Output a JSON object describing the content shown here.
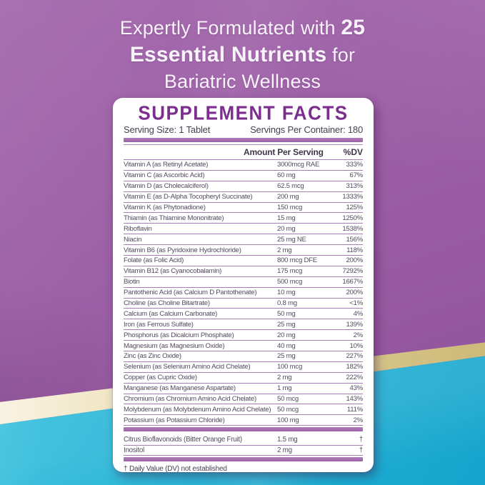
{
  "headline": {
    "line1_regular": "Expertly Formulated with ",
    "line1_bold": "25",
    "line2_bold": "Essential Nutrients",
    "line2_regular": " for",
    "line3": "Bariatric Wellness"
  },
  "panel": {
    "title": "SUPPLEMENT FACTS",
    "serving_size": "Serving Size: 1 Tablet",
    "servings_per_container": "Servings Per Container: 180",
    "col_amount": "Amount Per Serving",
    "col_dv": "%DV",
    "rows": [
      {
        "name": "Vitamin A (as Retinyl Acetate)",
        "amount": "3000mcg RAE",
        "dv": "333%"
      },
      {
        "name": "Vitamin C (as Ascorbic Acid)",
        "amount": "60 mg",
        "dv": "67%"
      },
      {
        "name": "Vitamin D (as Cholecalciferol)",
        "amount": "62.5 mcg",
        "dv": "313%"
      },
      {
        "name": "Vitamin E (as D-Alpha Tocopheryl Succinate)",
        "amount": "200 mg",
        "dv": "1333%"
      },
      {
        "name": "Vitamin K (as Phytonadione)",
        "amount": "150 mcg",
        "dv": "125%"
      },
      {
        "name": "Thiamin (as Thiamine Mononitrate)",
        "amount": "15 mg",
        "dv": "1250%"
      },
      {
        "name": "Riboflavin",
        "amount": "20 mg",
        "dv": "1538%"
      },
      {
        "name": "Niacin",
        "amount": "25 mg NE",
        "dv": "156%"
      },
      {
        "name": "Vitamin B6 (as Pyridoxine Hydrochloride)",
        "amount": "2 mg",
        "dv": "118%"
      },
      {
        "name": "Folate (as Folic Acid)",
        "amount": "800 mcg DFE",
        "dv": "200%"
      },
      {
        "name": "Vitamin B12 (as Cyanocobalamin)",
        "amount": "175 mcg",
        "dv": "7292%"
      },
      {
        "name": "Biotin",
        "amount": "500 mcg",
        "dv": "1667%"
      },
      {
        "name": "Pantothenic Acid (as Calcium D Pantothenate)",
        "amount": "10 mg",
        "dv": "200%"
      },
      {
        "name": "Choline (as Choline Bitartrate)",
        "amount": "0.8 mg",
        "dv": "<1%"
      },
      {
        "name": "Calcium (as Calcium Carbonate)",
        "amount": "50 mg",
        "dv": "4%"
      },
      {
        "name": "Iron (as Ferrous Sulfate)",
        "amount": "25 mg",
        "dv": "139%"
      },
      {
        "name": "Phosphorus (as Dicalcium Phosphate)",
        "amount": "20 mg",
        "dv": "2%"
      },
      {
        "name": "Magnesium (as Magnesium Oxide)",
        "amount": "40 mg",
        "dv": "10%"
      },
      {
        "name": "Zinc (as Zinc Oxide)",
        "amount": "25 mg",
        "dv": "227%"
      },
      {
        "name": "Selenium (as Selenium Amino Acid Chelate)",
        "amount": "100 mcg",
        "dv": "182%"
      },
      {
        "name": "Copper (as Cupric Oxide)",
        "amount": "2 mg",
        "dv": "222%"
      },
      {
        "name": "Manganese (as Manganese Aspartate)",
        "amount": "1 mg",
        "dv": "43%"
      },
      {
        "name": "Chromium (as Chromium Amino Acid Chelate)",
        "amount": "50 mcg",
        "dv": "143%"
      },
      {
        "name": "Molybdenum (as Molybdenum Amino Acid Chelate)",
        "amount": "50 mcg",
        "dv": "111%"
      },
      {
        "name": "Potassium (as Potassium Chloride)",
        "amount": "100 mg",
        "dv": "2%"
      }
    ],
    "other_rows": [
      {
        "name": "Citrus Bioflavonoids (Bitter Orange Fruit)",
        "amount": "1.5 mg",
        "dv": "†"
      },
      {
        "name": "Inositol",
        "amount": "2 mg",
        "dv": "†"
      }
    ],
    "footnote": "† Daily Value (DV) not established"
  },
  "colors": {
    "brand_purple": "#9a5ba4",
    "deep_purple_title": "#7b2e8d",
    "bar_purple": "#9d63a8",
    "teal": "#24b4d6",
    "gold_stripe": "#d8c88c",
    "panel_bg": "#ffffff",
    "headline_text": "#f8f3fa"
  }
}
